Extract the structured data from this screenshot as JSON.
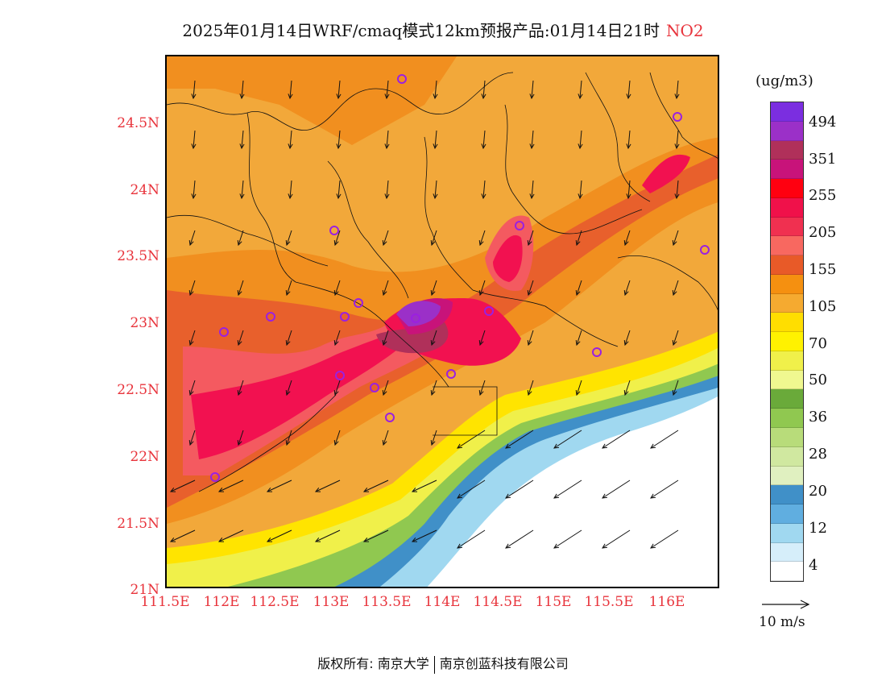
{
  "title": {
    "text": "2025年01月14日WRF/cmaq模式12km预报产品:01月14日21时",
    "pollutant": "NO2"
  },
  "axes": {
    "lat_labels": [
      "24.5N",
      "24N",
      "23.5N",
      "23N",
      "22.5N",
      "22N",
      "21.5N",
      "21N"
    ],
    "lon_labels": [
      "111.5E",
      "112E",
      "112.5E",
      "113E",
      "113.5E",
      "114E",
      "114.5E",
      "115E",
      "115.5E",
      "116E"
    ]
  },
  "colorbar": {
    "unit": "(ug/m3)",
    "colors": [
      "#7b2ee0",
      "#9b30c8",
      "#b0305a",
      "#c8137a",
      "#ff0010",
      "#f0114a",
      "#f03050",
      "#f86860",
      "#e85a28",
      "#f59010",
      "#f5aa30",
      "#ffde00",
      "#fff200",
      "#f0f04a",
      "#f0f890",
      "#6aaa3a",
      "#90c850",
      "#b8dc7a",
      "#d0e8a0",
      "#e0f0c0",
      "#4090c8",
      "#60aee0",
      "#a0d8f0",
      "#d6eefa",
      "#ffffff"
    ],
    "labels": [
      "494",
      "351",
      "255",
      "205",
      "155",
      "105",
      "70",
      "50",
      "36",
      "28",
      "20",
      "12",
      "4"
    ]
  },
  "wind_reference": {
    "label": "10 m/s"
  },
  "footer": {
    "left": "版权所有: 南京大学",
    "right": "南京创蓝科技有限公司"
  }
}
